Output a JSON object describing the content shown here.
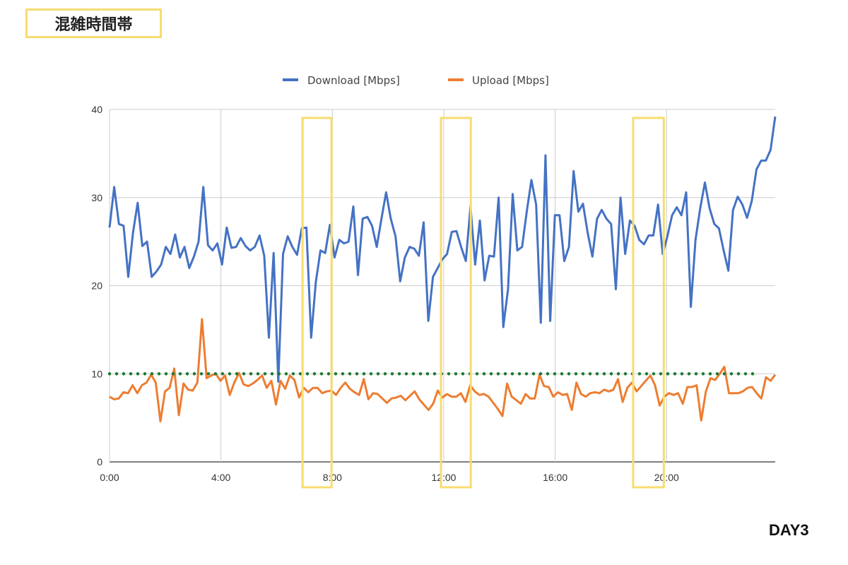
{
  "header": {
    "title": "混雑時間帯",
    "day_label": "DAY3"
  },
  "chart_data": {
    "type": "line",
    "title": "",
    "xlabel": "",
    "ylabel": "",
    "x_unit": "hours",
    "xlim": [
      0,
      23.9
    ],
    "ylim": [
      0,
      40
    ],
    "grid": true,
    "legend_position": "top-center",
    "x_ticks": [
      0,
      4,
      8,
      12,
      16,
      20
    ],
    "x_tick_labels": [
      "0:00",
      "4:00",
      "8:00",
      "12:00",
      "16:00",
      "20:00"
    ],
    "y_ticks": [
      0,
      10,
      20,
      30,
      40
    ],
    "y_tick_labels": [
      "0",
      "10",
      "20",
      "30",
      "40"
    ],
    "series": [
      {
        "name": "Download [Mbps]",
        "color": "#4472c4",
        "values": [
          26.6,
          31.2,
          27,
          26.8,
          21,
          26,
          29.4,
          24.5,
          25,
          21,
          21.6,
          22.4,
          24.4,
          23.6,
          25.8,
          23.2,
          24.4,
          22,
          23.3,
          25,
          31.2,
          24.6,
          24,
          24.8,
          22.4,
          26.6,
          24.3,
          24.4,
          25.4,
          24.5,
          24,
          24.4,
          25.7,
          23.4,
          14.1,
          23.7,
          9.1,
          23.6,
          25.6,
          24.4,
          23.5,
          26.5,
          26.6,
          14.1,
          20.4,
          24,
          23.7,
          26.9,
          23.2,
          25.2,
          24.8,
          25,
          29,
          21.2,
          27.6,
          27.8,
          26.8,
          24.4,
          27.6,
          30.6,
          27.6,
          25.6,
          20.5,
          23.2,
          24.4,
          24.2,
          23.4,
          27.2,
          16,
          21,
          22,
          23,
          23.6,
          26.1,
          26.2,
          24.4,
          22.8,
          29,
          22.4,
          27.4,
          20.6,
          23.4,
          23.3,
          30,
          15.3,
          19.6,
          30.4,
          24,
          24.4,
          28.4,
          32,
          29.2,
          15.8,
          34.8,
          16,
          28,
          28,
          22.8,
          24.4,
          33,
          28.4,
          29.3,
          26,
          23.3,
          27.6,
          28.6,
          27.6,
          27,
          19.6,
          30,
          23.6,
          27.4,
          26.8,
          25.2,
          24.7,
          25.7,
          25.7,
          29.2,
          23.6,
          25.6,
          28,
          28.9,
          28,
          30.6,
          17.6,
          25.2,
          28.8,
          31.7,
          28.8,
          27,
          26.5,
          24,
          21.7,
          28.6,
          30.1,
          29.2,
          27.7,
          29.6,
          33.2,
          34.2,
          34.2,
          35.4,
          39.2
        ]
      },
      {
        "name": "Upload [Mbps]",
        "color": "#ed7d31",
        "values": [
          7.4,
          7.1,
          7.2,
          7.9,
          7.8,
          8.7,
          7.8,
          8.7,
          9.0,
          9.9,
          9.0,
          4.6,
          8.0,
          8.4,
          10.6,
          5.3,
          8.9,
          8.2,
          8.1,
          9.0,
          16.2,
          9.5,
          9.8,
          10.0,
          9.2,
          9.8,
          7.6,
          9.0,
          10.1,
          8.8,
          8.6,
          8.9,
          9.3,
          9.8,
          8.4,
          9.2,
          6.5,
          9.2,
          8.3,
          9.8,
          9.3,
          7.3,
          8.4,
          7.9,
          8.4,
          8.4,
          7.8,
          8.0,
          8.1,
          7.6,
          8.4,
          9.0,
          8.3,
          7.9,
          7.6,
          9.4,
          7.1,
          7.8,
          7.7,
          7.2,
          6.7,
          7.2,
          7.3,
          7.5,
          7.0,
          7.5,
          8.0,
          7.1,
          6.5,
          5.9,
          6.6,
          8.1,
          7.3,
          7.7,
          7.4,
          7.4,
          7.8,
          6.8,
          8.7,
          8.0,
          7.6,
          7.7,
          7.4,
          6.7,
          6.0,
          5.2,
          8.9,
          7.4,
          7.0,
          6.6,
          7.7,
          7.2,
          7.2,
          9.9,
          8.6,
          8.5,
          7.4,
          7.9,
          7.6,
          7.7,
          5.9,
          9.0,
          7.7,
          7.4,
          7.8,
          7.9,
          7.8,
          8.2,
          8.0,
          8.2,
          9.4,
          6.8,
          8.4,
          9.0,
          8.0,
          8.6,
          9.2,
          9.8,
          8.7,
          6.4,
          7.4,
          7.8,
          7.6,
          7.8,
          6.6,
          8.5,
          8.5,
          8.7,
          4.7,
          8.0,
          9.5,
          9.3,
          10.0,
          10.8,
          7.8,
          7.8,
          7.8,
          8.0,
          8.4,
          8.5,
          7.8,
          7.2,
          9.6,
          9.2,
          9.9
        ]
      }
    ],
    "reference_line": {
      "value": 10,
      "x_range": [
        0,
        23.25
      ],
      "color": "#1e7b34",
      "style": "dotted"
    },
    "highlight_ranges": [
      [
        6.93,
        7.97
      ],
      [
        11.9,
        12.97
      ],
      [
        18.8,
        19.9
      ]
    ],
    "highlight_color": "#f7dc6f"
  }
}
